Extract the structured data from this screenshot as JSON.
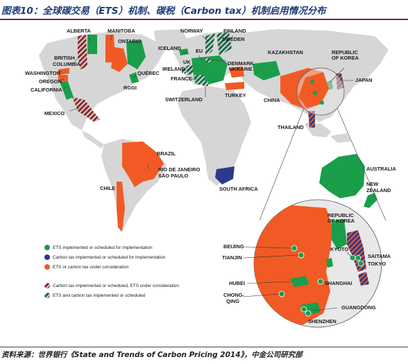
{
  "title": "图表10：全球碳交易（ETS）机制、碳税（Carbon tax）机制启用情况分布",
  "source": "资料来源：世界银行《State and Trends of Carbon Pricing 2014》，中金公司研究部",
  "colors": {
    "ets": "#1a9e4a",
    "carbon_tax": "#2c3a8c",
    "under_consideration": "#f15a24",
    "tax_ets_consideration": "#8a2c2a",
    "ets_and_tax": "#1d6b4a",
    "land": "#d6d6d6",
    "zoom_circle": "#e8e8e8"
  },
  "legend": [
    {
      "key": "ets",
      "text": "ETS implemented or scheduled for implementation"
    },
    {
      "key": "carbon_tax",
      "text": "Carbon tax implemented or scheduled for implementation"
    },
    {
      "key": "under_consideration",
      "text": "ETS or carbon tax under consideration"
    },
    {
      "key": "tax_ets_consideration",
      "text": "Carbon tax implemented or scheduled, ETS under consideration"
    },
    {
      "key": "ets_and_tax",
      "text": "ETS and carbon tax implemented or scheduled"
    }
  ],
  "labels": {
    "alberta": "ALBERTA",
    "manitoba": "MANITOBA",
    "ontario": "ONTARIO",
    "british_columbia_1": "BRITISH",
    "british_columbia_2": "COLUMBIA",
    "washington": "WASHINGTON",
    "oregon": "OREGON",
    "california": "CALIFORNIA",
    "quebec": "QUÉBEC",
    "rggi": "RGGI",
    "mexico": "MEXICO",
    "norway": "NORWAY",
    "finland": "FINLAND",
    "sweden": "SWEDEN",
    "iceland": "ICELAND",
    "eu": "EU",
    "denmark": "DENMARK",
    "ukraine": "UKRAINE",
    "uk": "UK",
    "ireland": "IRELAND",
    "france": "FRANCE",
    "switzerland": "SWITZERLAND",
    "turkey": "TURKEY",
    "kazakhstan": "KAZAKHSTAN",
    "china": "CHINA",
    "thailand": "THAILAND",
    "rok_1": "REPUBLIC",
    "rok_2": "OF KOREA",
    "japan": "JAPAN",
    "brazil": "BRAZIL",
    "rio_1": "RIO DE JANEIRO",
    "sao_paulo": "SÃO PAULO",
    "chile": "CHILE",
    "south_africa": "SOUTH AFRICA",
    "australia": "AUSTRALIA",
    "nz_1": "NEW",
    "nz_2": "ZEALAND",
    "z_rok_1": "REPUBLIC",
    "z_rok_2": "OF KOREA",
    "z_beijing": "BEIJING",
    "z_tianjin": "TIANJIN",
    "z_kyoto": "KYOTO",
    "z_saitama": "SAITAMA",
    "z_tokyo": "TOKYO",
    "z_hubei": "HUBEI",
    "z_shanghai": "SHANGHAI",
    "z_chong_1": "CHONG-",
    "z_chong_2": "QING",
    "z_guangdong": "GUANGDONG",
    "z_shenzhen": "SHENZHEN"
  }
}
